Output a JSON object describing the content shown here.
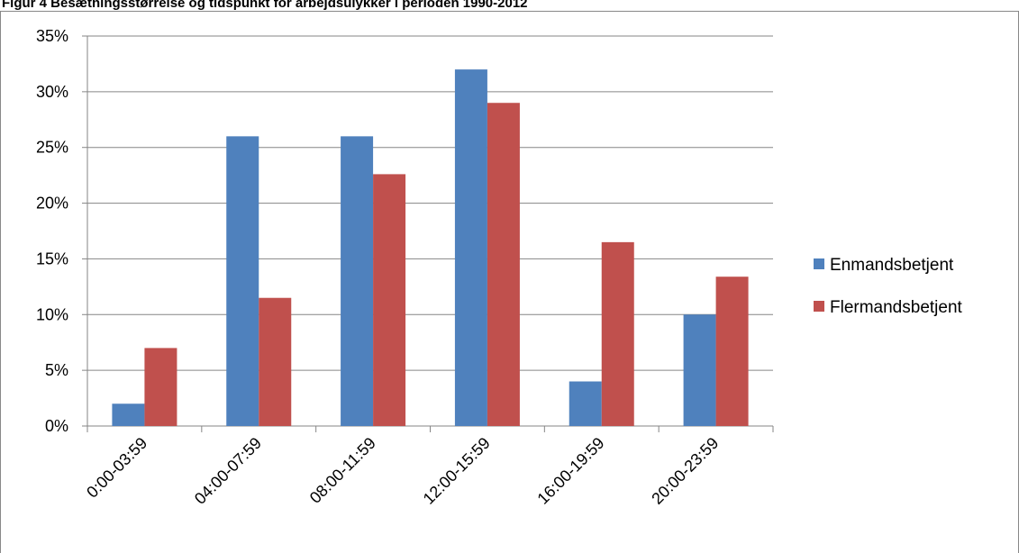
{
  "chart_data": {
    "type": "bar",
    "title": "Figur 4 Besætningsstørrelse og tidspunkt for arbejdsulykker i perioden 1990-2012",
    "categories": [
      "0:00-03:59",
      "04:00-07:59",
      "08:00-11:59",
      "12:00-15:59",
      "16:00-19:59",
      "20:00-23:59"
    ],
    "series": [
      {
        "name": "Enmandsbetjent",
        "color": "#4f81bd",
        "values": [
          2,
          26,
          26,
          32,
          4,
          10
        ]
      },
      {
        "name": "Flermandsbetjent",
        "color": "#c0504d",
        "values": [
          7,
          11.5,
          22.6,
          29,
          16.5,
          13.4
        ]
      }
    ],
    "ylim": [
      0,
      35
    ],
    "yticks": [
      {
        "value": 0,
        "label": "0%"
      },
      {
        "value": 5,
        "label": "5%"
      },
      {
        "value": 10,
        "label": "10%"
      },
      {
        "value": 15,
        "label": "15%"
      },
      {
        "value": 20,
        "label": "20%"
      },
      {
        "value": 25,
        "label": "25%"
      },
      {
        "value": 30,
        "label": "30%"
      },
      {
        "value": 35,
        "label": "35%"
      }
    ],
    "grid": true,
    "legend": "right"
  }
}
